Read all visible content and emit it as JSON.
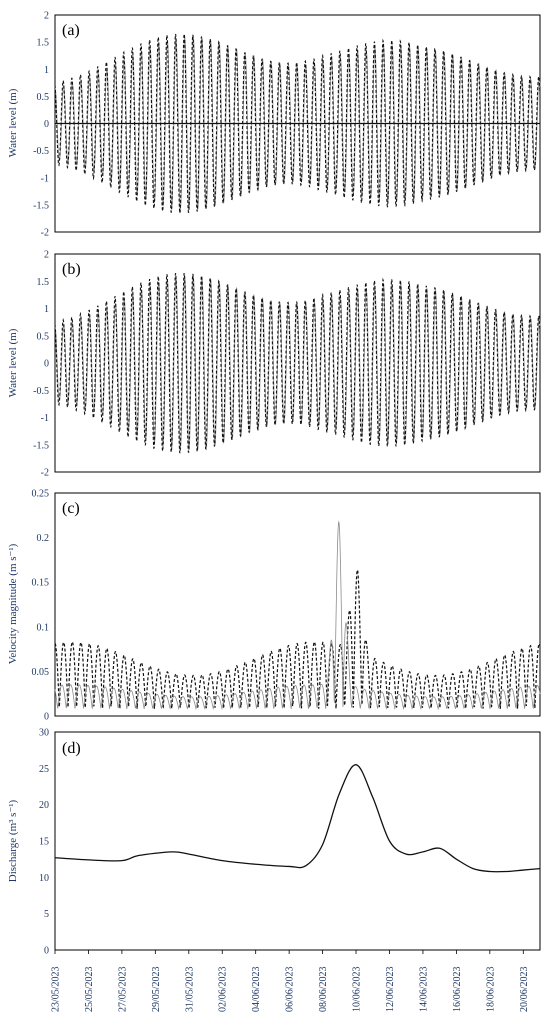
{
  "chart_data": [
    {
      "type": "line",
      "panel_label": "(a)",
      "ylabel": "Water level (m)",
      "ylim": [
        -2,
        2
      ],
      "yticks": [
        "2",
        "1.5",
        "1",
        "0.5",
        "0",
        "-0.5",
        "-1",
        "-1.5",
        "-2"
      ],
      "x_range": [
        "23/05/2023",
        "21/06/2023"
      ],
      "series": [
        {
          "style": "solid grey",
          "description_values": {
            "amplitude_start": 0.9,
            "amplitude_peak": 1.45,
            "amplitude_end": 1.1,
            "mean": 0
          }
        },
        {
          "style": "dashed black",
          "description_values": {
            "amplitude_start": 1.0,
            "amplitude_peak": 1.5,
            "amplitude_end": 1.15,
            "mean": 0
          }
        },
        {
          "style": "solid black",
          "description_values": {
            "mean": 0
          }
        }
      ]
    },
    {
      "type": "line",
      "panel_label": "(b)",
      "ylabel": "Water level (m)",
      "ylim": [
        -2,
        2
      ],
      "yticks": [
        "2",
        "1.5",
        "1",
        "0.5",
        "0",
        "-0.5",
        "-1",
        "-1.5",
        "-2"
      ],
      "x_range": [
        "23/05/2023",
        "21/06/2023"
      ],
      "series": [
        {
          "style": "solid grey",
          "description_values": {
            "amplitude_start": 0.9,
            "amplitude_peak": 1.45,
            "amplitude_end": 1.1
          }
        },
        {
          "style": "dashed black",
          "description_values": {
            "amplitude_start": 1.0,
            "amplitude_peak": 1.5,
            "amplitude_end": 1.15
          }
        }
      ]
    },
    {
      "type": "line",
      "panel_label": "(c)",
      "ylabel": "Velocity magnitude (m s⁻¹)",
      "ylim": [
        0,
        0.25
      ],
      "yticks": [
        "0.25",
        "0.2",
        "0.15",
        "0.1",
        "0.05",
        "0"
      ],
      "x_range": [
        "23/05/2023",
        "21/06/2023"
      ],
      "series": [
        {
          "style": "dashed black",
          "description_values": {
            "baseline_peak": 0.075,
            "max": 0.17,
            "max_date": "10/06/2023"
          }
        },
        {
          "style": "solid grey",
          "description_values": {
            "baseline_peak": 0.03,
            "max": 0.215,
            "max_date": "09/06/2023"
          }
        }
      ]
    },
    {
      "type": "line",
      "panel_label": "(d)",
      "ylabel": "Discharge  (m³ s⁻¹)",
      "ylim": [
        0,
        30
      ],
      "yticks": [
        "30",
        "25",
        "20",
        "15",
        "10",
        "5",
        "0"
      ],
      "x_range": [
        "23/05/2023",
        "21/06/2023"
      ],
      "series": [
        {
          "style": "solid black",
          "x": [
            "23/05/2023",
            "25/05/2023",
            "27/05/2023",
            "28/05/2023",
            "30/05/2023",
            "31/05/2023",
            "02/06/2023",
            "04/06/2023",
            "06/06/2023",
            "07/06/2023",
            "08/06/2023",
            "09/06/2023",
            "10/06/2023",
            "11/06/2023",
            "12/06/2023",
            "13/06/2023",
            "14/06/2023",
            "15/06/2023",
            "16/06/2023",
            "17/06/2023",
            "18/06/2023",
            "19/06/2023",
            "20/06/2023",
            "21/06/2023"
          ],
          "values": [
            12.7,
            12.4,
            12.3,
            13.0,
            13.5,
            13.2,
            12.3,
            11.8,
            11.5,
            11.6,
            14.5,
            21.5,
            25.5,
            21.0,
            15.0,
            13.2,
            13.5,
            14.0,
            12.5,
            11.2,
            10.8,
            10.8,
            11.0,
            11.2
          ]
        }
      ]
    }
  ],
  "x_tick_labels": [
    "23/05/2023",
    "25/05/2023",
    "27/05/2023",
    "29/05/2023",
    "31/05/2023",
    "02/06/2023",
    "04/06/2023",
    "06/06/2023",
    "08/06/2023",
    "10/06/2023",
    "12/06/2023",
    "14/06/2023",
    "16/06/2023",
    "18/06/2023",
    "20/06/2023"
  ],
  "colors": {
    "axis_text": "#1f3864",
    "grey_series": "#8c8c8c",
    "black_series": "#111111"
  }
}
